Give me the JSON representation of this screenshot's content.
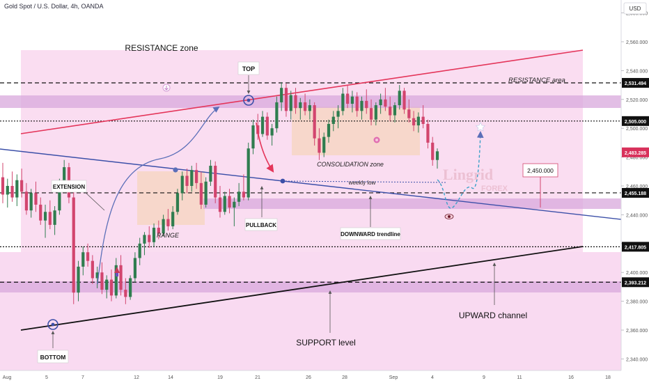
{
  "header": {
    "title": "Gold Spot / U.S. Dollar, 4h, OANDA",
    "currency": "USD"
  },
  "colors": {
    "background": "#ffffff",
    "zone_pink": "#f9d7ef",
    "band_purple": "#d8a8dc",
    "candle_up": "#2f7d4f",
    "candle_down": "#d2456e",
    "red_line": "#e4355a",
    "blue_line": "#3b4fa8",
    "black_line": "#111111",
    "range_box": "#f6d6c6",
    "price_tag_bg": "#111111",
    "current_price_bg": "#d8315b"
  },
  "chart_data": {
    "type": "candlestick",
    "symbol": "XAUUSD",
    "timeframe": "4h",
    "y_axis": {
      "ylim": [
        2332,
        2588
      ],
      "ticks": [
        2340,
        2360,
        2380,
        2400,
        2420,
        2440,
        2460,
        2480,
        2500,
        2520,
        2540,
        2560,
        2580
      ],
      "tick_labels": [
        "2,340.000",
        "2,360.000",
        "2,380.000",
        "2,400.000",
        "2,420.000",
        "2,440.000",
        "2,460.000",
        "2,480.000",
        "2,500.000",
        "2,520.000",
        "2,540.000",
        "2,560.000",
        "2,580.000"
      ]
    },
    "x_axis": {
      "tick_labels": [
        "Aug",
        "5",
        "7",
        "12",
        "14",
        "19",
        "21",
        "26",
        "28",
        "Sep",
        "4",
        "9",
        "11",
        "16",
        "18"
      ]
    },
    "price_levels": [
      {
        "value": 2531.494,
        "label": "2,531.494",
        "style": "dashed-black"
      },
      {
        "value": 2505.0,
        "label": "2,505.000",
        "style": "dotted-black"
      },
      {
        "value": 2483.285,
        "label": "2,483.285",
        "style": "current"
      },
      {
        "value": 2455.188,
        "label": "2,455.188",
        "style": "dashed-black"
      },
      {
        "value": 2417.805,
        "label": "2,417.805",
        "style": "dotted-black"
      },
      {
        "value": 2393.212,
        "label": "2,393.212",
        "style": "dashed-black"
      }
    ],
    "target_label": "2,450.000",
    "annotations": {
      "resistance_zone": "RESISTANCE zone",
      "top": "TOP",
      "resistance_area": "RESISTANCE area",
      "extension": "EXTENSION",
      "range": "RANGE",
      "pullback": "PULLBACK",
      "consolidation_zone": "CONSOLIDATION zone",
      "weekly_low": "weekly low",
      "downward_trendline": "DOWNWARD trendline",
      "upward_channel": "UPWARD channel",
      "support_level": "SUPPORT level",
      "bottom": "BOTTOM"
    },
    "watermark": {
      "brand": "Lingrid",
      "sub": "FOREX"
    },
    "candles": [
      [
        2466,
        2476,
        2448,
        2454
      ],
      [
        2454,
        2465,
        2445,
        2460
      ],
      [
        2460,
        2470,
        2449,
        2452
      ],
      [
        2452,
        2468,
        2446,
        2464
      ],
      [
        2464,
        2472,
        2452,
        2456
      ],
      [
        2456,
        2462,
        2440,
        2443
      ],
      [
        2443,
        2458,
        2438,
        2455
      ],
      [
        2455,
        2463,
        2442,
        2447
      ],
      [
        2447,
        2452,
        2433,
        2436
      ],
      [
        2436,
        2447,
        2424,
        2442
      ],
      [
        2442,
        2450,
        2430,
        2433
      ],
      [
        2433,
        2446,
        2426,
        2443
      ],
      [
        2443,
        2465,
        2440,
        2463
      ],
      [
        2463,
        2478,
        2458,
        2473
      ],
      [
        2473,
        2476,
        2448,
        2452
      ],
      [
        2452,
        2457,
        2378,
        2386
      ],
      [
        2386,
        2408,
        2380,
        2404
      ],
      [
        2404,
        2418,
        2398,
        2414
      ],
      [
        2414,
        2420,
        2404,
        2408
      ],
      [
        2408,
        2412,
        2392,
        2396
      ],
      [
        2396,
        2404,
        2389,
        2400
      ],
      [
        2400,
        2407,
        2385,
        2388
      ],
      [
        2388,
        2398,
        2382,
        2395
      ],
      [
        2395,
        2402,
        2380,
        2384
      ],
      [
        2384,
        2410,
        2382,
        2405
      ],
      [
        2405,
        2412,
        2384,
        2388
      ],
      [
        2388,
        2396,
        2378,
        2383
      ],
      [
        2383,
        2398,
        2381,
        2396
      ],
      [
        2396,
        2414,
        2393,
        2410
      ],
      [
        2410,
        2424,
        2405,
        2420
      ],
      [
        2420,
        2428,
        2412,
        2426
      ],
      [
        2426,
        2432,
        2417,
        2421
      ],
      [
        2421,
        2434,
        2418,
        2431
      ],
      [
        2431,
        2436,
        2423,
        2427
      ],
      [
        2427,
        2440,
        2425,
        2437
      ],
      [
        2437,
        2444,
        2429,
        2432
      ],
      [
        2432,
        2446,
        2430,
        2442
      ],
      [
        2442,
        2458,
        2440,
        2455
      ],
      [
        2455,
        2470,
        2450,
        2467
      ],
      [
        2467,
        2472,
        2455,
        2460
      ],
      [
        2460,
        2474,
        2456,
        2471
      ],
      [
        2471,
        2476,
        2458,
        2462
      ],
      [
        2462,
        2470,
        2444,
        2447
      ],
      [
        2447,
        2466,
        2445,
        2463
      ],
      [
        2463,
        2478,
        2460,
        2474
      ],
      [
        2474,
        2477,
        2448,
        2452
      ],
      [
        2452,
        2460,
        2438,
        2442
      ],
      [
        2442,
        2456,
        2440,
        2453
      ],
      [
        2453,
        2458,
        2441,
        2445
      ],
      [
        2445,
        2452,
        2432,
        2449
      ],
      [
        2449,
        2462,
        2446,
        2456
      ],
      [
        2456,
        2468,
        2450,
        2452
      ],
      [
        2452,
        2490,
        2450,
        2486
      ],
      [
        2486,
        2506,
        2482,
        2502
      ],
      [
        2502,
        2510,
        2492,
        2496
      ],
      [
        2496,
        2512,
        2494,
        2508
      ],
      [
        2508,
        2511,
        2492,
        2495
      ],
      [
        2495,
        2503,
        2488,
        2500
      ],
      [
        2500,
        2522,
        2497,
        2518
      ],
      [
        2518,
        2532,
        2512,
        2528
      ],
      [
        2528,
        2531,
        2508,
        2512
      ],
      [
        2512,
        2526,
        2506,
        2523
      ],
      [
        2523,
        2528,
        2510,
        2514
      ],
      [
        2514,
        2521,
        2506,
        2518
      ],
      [
        2518,
        2524,
        2509,
        2512
      ],
      [
        2512,
        2520,
        2506,
        2516
      ],
      [
        2516,
        2518,
        2488,
        2493
      ],
      [
        2493,
        2500,
        2478,
        2483
      ],
      [
        2483,
        2497,
        2480,
        2494
      ],
      [
        2494,
        2506,
        2490,
        2503
      ],
      [
        2503,
        2512,
        2498,
        2508
      ],
      [
        2508,
        2516,
        2500,
        2512
      ],
      [
        2512,
        2528,
        2509,
        2524
      ],
      [
        2524,
        2530,
        2514,
        2517
      ],
      [
        2517,
        2526,
        2511,
        2522
      ],
      [
        2522,
        2525,
        2508,
        2512
      ],
      [
        2512,
        2522,
        2506,
        2519
      ],
      [
        2519,
        2527,
        2510,
        2514
      ],
      [
        2514,
        2520,
        2502,
        2506
      ],
      [
        2506,
        2518,
        2502,
        2516
      ],
      [
        2516,
        2524,
        2510,
        2520
      ],
      [
        2520,
        2528,
        2512,
        2515
      ],
      [
        2515,
        2522,
        2505,
        2509
      ],
      [
        2509,
        2518,
        2504,
        2516
      ],
      [
        2516,
        2530,
        2513,
        2526
      ],
      [
        2526,
        2528,
        2510,
        2513
      ],
      [
        2513,
        2520,
        2504,
        2507
      ],
      [
        2507,
        2512,
        2498,
        2502
      ],
      [
        2502,
        2511,
        2497,
        2508
      ],
      [
        2508,
        2516,
        2500,
        2503
      ],
      [
        2503,
        2506,
        2486,
        2490
      ],
      [
        2490,
        2494,
        2474,
        2478
      ],
      [
        2478,
        2486,
        2472,
        2484
      ]
    ]
  }
}
